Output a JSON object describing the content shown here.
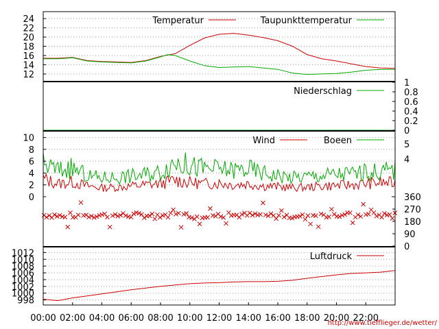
{
  "chart_data": {
    "type": "line",
    "x_ticks": [
      "00:00",
      "02:00",
      "04:00",
      "06:00",
      "08:00",
      "10:00",
      "12:00",
      "14:00",
      "16:00",
      "18:00",
      "20:00",
      "22:00"
    ],
    "x_range_hours": [
      0,
      24
    ],
    "colors": {
      "red": "#cc0000",
      "green": "#00aa00"
    },
    "panels": [
      {
        "id": "temperature",
        "type": "line",
        "yticks": [
          12,
          14,
          16,
          18,
          20,
          22,
          24
        ],
        "ylim": [
          10.5,
          25.5
        ],
        "y_axis_side": "left",
        "grid": true,
        "legend_position": "top-right",
        "series": [
          {
            "name": "Temperatur",
            "color": "#cc0000",
            "points": [
              [
                0,
                15.4
              ],
              [
                1,
                15.4
              ],
              [
                2,
                15.6
              ],
              [
                3,
                14.9
              ],
              [
                4,
                14.7
              ],
              [
                5,
                14.6
              ],
              [
                6,
                14.5
              ],
              [
                7,
                14.9
              ],
              [
                8,
                15.8
              ],
              [
                8.5,
                16.1
              ],
              [
                9,
                16.4
              ],
              [
                10,
                18.2
              ],
              [
                11,
                19.8
              ],
              [
                12,
                20.6
              ],
              [
                13,
                20.8
              ],
              [
                14,
                20.4
              ],
              [
                15,
                19.9
              ],
              [
                16,
                19.2
              ],
              [
                17,
                18.0
              ],
              [
                18,
                16.2
              ],
              [
                19,
                15.3
              ],
              [
                20,
                14.8
              ],
              [
                21,
                14.2
              ],
              [
                22,
                13.6
              ],
              [
                23,
                13.3
              ],
              [
                24,
                13.2
              ]
            ]
          },
          {
            "name": "Taupunkttemperatur",
            "color": "#00aa00",
            "points": [
              [
                0,
                15.3
              ],
              [
                1,
                15.3
              ],
              [
                2,
                15.5
              ],
              [
                3,
                14.8
              ],
              [
                4,
                14.6
              ],
              [
                5,
                14.5
              ],
              [
                6,
                14.4
              ],
              [
                7,
                14.8
              ],
              [
                8,
                15.7
              ],
              [
                8.5,
                16.2
              ],
              [
                9,
                16.0
              ],
              [
                10,
                14.8
              ],
              [
                11,
                13.8
              ],
              [
                12,
                13.4
              ],
              [
                13,
                13.5
              ],
              [
                14,
                13.6
              ],
              [
                15,
                13.3
              ],
              [
                16,
                13.0
              ],
              [
                17,
                12.2
              ],
              [
                18,
                11.9
              ],
              [
                19,
                12.0
              ],
              [
                20,
                12.1
              ],
              [
                21,
                12.4
              ],
              [
                22,
                12.8
              ],
              [
                23,
                13.0
              ],
              [
                24,
                13.0
              ]
            ]
          }
        ]
      },
      {
        "id": "precipitation",
        "type": "line",
        "yticks": [
          "0",
          "0.2",
          "0.4",
          "0.6",
          "0.8",
          "1"
        ],
        "ylim": [
          0,
          1
        ],
        "y_axis_side": "right",
        "grid": false,
        "legend_position": "top-right",
        "series": [
          {
            "name": "Niederschlag",
            "color": "#00aa00",
            "points": [
              [
                0,
                0
              ],
              [
                24,
                0
              ]
            ]
          }
        ]
      },
      {
        "id": "wind",
        "type": "line",
        "yticks": [
          0,
          2,
          4,
          6,
          8,
          10
        ],
        "ylim": [
          0,
          11
        ],
        "right_labels": [
          "5",
          "4"
        ],
        "y_axis_side": "left",
        "grid": true,
        "legend_position": "top-right",
        "series": [
          {
            "name": "Wind",
            "color": "#cc0000",
            "points": [
              [
                0,
                3.0
              ],
              [
                1,
                2.2
              ],
              [
                2,
                2.5
              ],
              [
                3,
                1.8
              ],
              [
                4,
                1.5
              ],
              [
                5,
                1.6
              ],
              [
                6,
                1.8
              ],
              [
                7,
                2.0
              ],
              [
                8,
                2.2
              ],
              [
                9,
                2.8
              ],
              [
                10,
                2.4
              ],
              [
                11,
                2.2
              ],
              [
                12,
                2.3
              ],
              [
                13,
                2.0
              ],
              [
                14,
                2.2
              ],
              [
                15,
                1.8
              ],
              [
                16,
                1.7
              ],
              [
                17,
                1.5
              ],
              [
                18,
                1.6
              ],
              [
                19,
                1.8
              ],
              [
                20,
                1.9
              ],
              [
                21,
                2.0
              ],
              [
                22,
                2.2
              ],
              [
                23,
                2.4
              ],
              [
                24,
                2.3
              ]
            ]
          },
          {
            "name": "Boeen",
            "color": "#00aa00",
            "points": [
              [
                0,
                5.5
              ],
              [
                1,
                4.5
              ],
              [
                2,
                4.8
              ],
              [
                3,
                3.5
              ],
              [
                4,
                3.2
              ],
              [
                5,
                3.3
              ],
              [
                6,
                3.5
              ],
              [
                7,
                3.8
              ],
              [
                8,
                4.2
              ],
              [
                9,
                6.0
              ],
              [
                10,
                5.2
              ],
              [
                11,
                4.8
              ],
              [
                12,
                4.6
              ],
              [
                13,
                4.5
              ],
              [
                14,
                4.7
              ],
              [
                15,
                4.0
              ],
              [
                16,
                3.6
              ],
              [
                17,
                3.2
              ],
              [
                18,
                3.4
              ],
              [
                19,
                3.6
              ],
              [
                20,
                3.8
              ],
              [
                21,
                3.9
              ],
              [
                22,
                4.1
              ],
              [
                23,
                4.3
              ],
              [
                24,
                4.5
              ]
            ]
          }
        ]
      },
      {
        "id": "wind_direction",
        "type": "scatter",
        "yticks": [
          0,
          90,
          180,
          270,
          360
        ],
        "ylim": [
          0,
          360
        ],
        "y_axis_side": "right",
        "marker": "x",
        "color": "#cc0000",
        "typical_direction_degrees": 225,
        "spread_degrees": [
          130,
          320
        ]
      },
      {
        "id": "pressure",
        "type": "line",
        "yticks": [
          998,
          1000,
          1002,
          1004,
          1006,
          1008,
          1010,
          1012
        ],
        "ylim": [
          996.5,
          1013.5
        ],
        "y_axis_side": "left",
        "grid": true,
        "legend_position": "top-right",
        "series": [
          {
            "name": "Luftdruck",
            "color": "#cc0000",
            "points": [
              [
                0,
                998.2
              ],
              [
                1,
                997.8
              ],
              [
                2,
                998.6
              ],
              [
                3,
                999.2
              ],
              [
                4,
                999.8
              ],
              [
                5,
                1000.4
              ],
              [
                6,
                1001.0
              ],
              [
                7,
                1001.5
              ],
              [
                8,
                1002.0
              ],
              [
                9,
                1002.4
              ],
              [
                10,
                1002.8
              ],
              [
                11,
                1003.0
              ],
              [
                12,
                1003.1
              ],
              [
                13,
                1003.3
              ],
              [
                14,
                1003.4
              ],
              [
                15,
                1003.4
              ],
              [
                16,
                1003.5
              ],
              [
                17,
                1003.8
              ],
              [
                18,
                1004.4
              ],
              [
                19,
                1004.9
              ],
              [
                20,
                1005.4
              ],
              [
                21,
                1005.8
              ],
              [
                22,
                1006.0
              ],
              [
                23,
                1006.2
              ],
              [
                24,
                1006.7
              ]
            ]
          }
        ]
      }
    ]
  },
  "footer": {
    "url": "http://www.tiefflieger.de/wetter/"
  }
}
